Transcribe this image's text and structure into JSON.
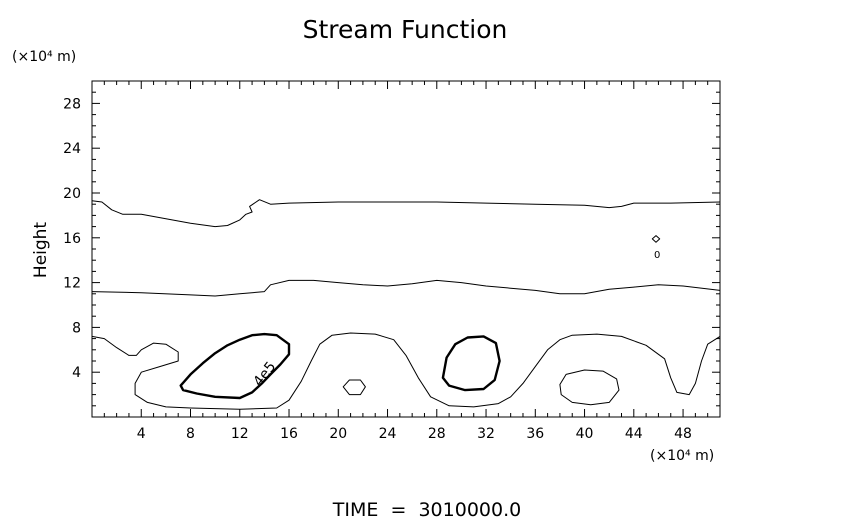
{
  "chart_data": {
    "type": "contour",
    "title": "Stream Function",
    "ylabel": "Height",
    "y_unit": "(×10⁴ m)",
    "x_unit": "(×10⁴ m)",
    "xlim": [
      0,
      51
    ],
    "ylim": [
      0,
      30
    ],
    "x_ticks": [
      4,
      8,
      12,
      16,
      20,
      24,
      28,
      32,
      36,
      40,
      44,
      48
    ],
    "y_ticks": [
      4,
      8,
      12,
      16,
      20,
      24,
      28
    ],
    "contour_label": "4e5",
    "zero_label": "0",
    "footer": "TIME  =  3010000.0",
    "grid": false,
    "contours": [
      {
        "level": "upper",
        "bold": false,
        "closed": false,
        "points": [
          [
            0,
            19.3
          ],
          [
            0.8,
            19.2
          ],
          [
            1.6,
            18.5
          ],
          [
            2.5,
            18.1
          ],
          [
            4,
            18.1
          ],
          [
            6,
            17.7
          ],
          [
            8,
            17.3
          ],
          [
            10,
            17.0
          ],
          [
            11,
            17.1
          ],
          [
            12,
            17.6
          ],
          [
            12.5,
            18.1
          ],
          [
            13,
            18.3
          ],
          [
            12.8,
            18.8
          ],
          [
            13.6,
            19.4
          ],
          [
            14.5,
            19.0
          ],
          [
            16,
            19.1
          ],
          [
            20,
            19.2
          ],
          [
            24,
            19.2
          ],
          [
            28,
            19.2
          ],
          [
            32,
            19.1
          ],
          [
            36,
            19.0
          ],
          [
            40,
            18.9
          ],
          [
            42,
            18.7
          ],
          [
            43,
            18.8
          ],
          [
            44,
            19.1
          ],
          [
            47,
            19.1
          ],
          [
            51,
            19.2
          ]
        ]
      },
      {
        "level": "middle",
        "bold": false,
        "closed": false,
        "points": [
          [
            0,
            11.2
          ],
          [
            4,
            11.1
          ],
          [
            8,
            10.9
          ],
          [
            10,
            10.8
          ],
          [
            12,
            11.0
          ],
          [
            14,
            11.2
          ],
          [
            14.5,
            11.8
          ],
          [
            16,
            12.2
          ],
          [
            18,
            12.2
          ],
          [
            20,
            12.0
          ],
          [
            22,
            11.8
          ],
          [
            24,
            11.7
          ],
          [
            26,
            11.9
          ],
          [
            28,
            12.2
          ],
          [
            30,
            12.0
          ],
          [
            32,
            11.7
          ],
          [
            34,
            11.5
          ],
          [
            36,
            11.3
          ],
          [
            38,
            11.0
          ],
          [
            40,
            11.0
          ],
          [
            42,
            11.4
          ],
          [
            44,
            11.6
          ],
          [
            46,
            11.8
          ],
          [
            48,
            11.7
          ],
          [
            51,
            11.3
          ]
        ]
      },
      {
        "level": "lower",
        "bold": false,
        "closed": false,
        "points": [
          [
            0,
            7.2
          ],
          [
            1,
            7.0
          ],
          [
            2,
            6.2
          ],
          [
            3,
            5.5
          ],
          [
            3.6,
            5.5
          ],
          [
            4,
            6.0
          ],
          [
            5,
            6.6
          ],
          [
            6,
            6.5
          ],
          [
            7,
            5.8
          ],
          [
            7,
            5.0
          ],
          [
            5.5,
            4.5
          ],
          [
            4,
            4.0
          ],
          [
            3.5,
            3.0
          ],
          [
            3.5,
            2.0
          ],
          [
            4.5,
            1.3
          ],
          [
            6,
            0.9
          ],
          [
            8,
            0.8
          ],
          [
            12,
            0.7
          ],
          [
            15,
            0.8
          ],
          [
            16,
            1.5
          ],
          [
            17,
            3.2
          ],
          [
            17.8,
            5.0
          ],
          [
            18.5,
            6.5
          ],
          [
            19.5,
            7.3
          ],
          [
            21,
            7.5
          ],
          [
            23,
            7.4
          ],
          [
            24.5,
            6.9
          ],
          [
            25.5,
            5.5
          ],
          [
            26.5,
            3.5
          ],
          [
            27.5,
            1.8
          ],
          [
            29,
            1.0
          ],
          [
            31,
            0.9
          ],
          [
            33,
            1.2
          ],
          [
            34,
            1.8
          ],
          [
            35,
            3.0
          ],
          [
            36,
            4.5
          ],
          [
            37,
            6.0
          ],
          [
            38,
            6.9
          ],
          [
            39,
            7.3
          ],
          [
            41,
            7.4
          ],
          [
            43,
            7.2
          ],
          [
            45,
            6.4
          ],
          [
            46.5,
            5.2
          ],
          [
            47,
            3.5
          ],
          [
            47.5,
            2.2
          ],
          [
            48.5,
            2.0
          ],
          [
            49,
            3.0
          ],
          [
            49.5,
            5.0
          ],
          [
            50,
            6.5
          ],
          [
            51,
            7.2
          ]
        ]
      },
      {
        "level": "4e5",
        "bold": true,
        "closed": true,
        "points": [
          [
            7.2,
            2.8
          ],
          [
            8,
            3.8
          ],
          [
            9,
            4.8
          ],
          [
            10,
            5.7
          ],
          [
            11,
            6.4
          ],
          [
            12,
            6.9
          ],
          [
            13,
            7.3
          ],
          [
            14,
            7.4
          ],
          [
            15,
            7.3
          ],
          [
            16,
            6.5
          ],
          [
            16,
            5.6
          ],
          [
            15.3,
            4.7
          ],
          [
            14.5,
            3.8
          ],
          [
            13.8,
            3.0
          ],
          [
            13,
            2.2
          ],
          [
            12,
            1.7
          ],
          [
            10,
            1.8
          ],
          [
            8.5,
            2.1
          ],
          [
            7.4,
            2.4
          ]
        ]
      },
      {
        "level": "4e5",
        "bold": true,
        "closed": true,
        "points": [
          [
            28.5,
            3.5
          ],
          [
            28.8,
            5.3
          ],
          [
            29.5,
            6.5
          ],
          [
            30.5,
            7.1
          ],
          [
            31.8,
            7.2
          ],
          [
            32.8,
            6.6
          ],
          [
            33.1,
            5.0
          ],
          [
            32.7,
            3.3
          ],
          [
            31.8,
            2.5
          ],
          [
            30.3,
            2.4
          ],
          [
            29,
            2.8
          ]
        ]
      },
      {
        "level": "inner",
        "bold": false,
        "closed": true,
        "points": [
          [
            20.4,
            2.7
          ],
          [
            20.9,
            3.3
          ],
          [
            21.8,
            3.3
          ],
          [
            22.2,
            2.7
          ],
          [
            21.8,
            2.0
          ],
          [
            20.9,
            2.0
          ]
        ]
      },
      {
        "level": "inner",
        "bold": false,
        "closed": true,
        "points": [
          [
            38,
            2.9
          ],
          [
            38.5,
            3.8
          ],
          [
            40,
            4.2
          ],
          [
            41.5,
            4.1
          ],
          [
            42.6,
            3.4
          ],
          [
            42.8,
            2.4
          ],
          [
            42,
            1.3
          ],
          [
            40.5,
            1.1
          ],
          [
            39,
            1.3
          ],
          [
            38.1,
            2.0
          ]
        ]
      },
      {
        "level": "zero",
        "bold": false,
        "closed": true,
        "points": [
          [
            45.5,
            15.9
          ],
          [
            45.8,
            15.6
          ],
          [
            46.1,
            15.9
          ],
          [
            45.8,
            16.2
          ]
        ]
      }
    ]
  }
}
